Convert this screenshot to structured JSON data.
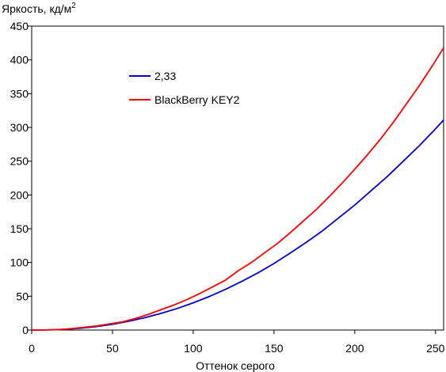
{
  "chart_data": {
    "type": "line",
    "ylabel_main": "Яркость, кд/м",
    "ylabel_sup": "2",
    "xlabel": "Оттенок серого",
    "xlim": [
      0,
      255
    ],
    "ylim": [
      0,
      450
    ],
    "xticks": [
      0,
      50,
      100,
      150,
      200,
      250
    ],
    "yticks": [
      0,
      50,
      100,
      150,
      200,
      250,
      300,
      350,
      400,
      450
    ],
    "grid": false,
    "legend_position": "upper-left",
    "series": [
      {
        "name": "2,33",
        "color": "#0000cc",
        "x": [
          0,
          10,
          20,
          30,
          40,
          50,
          60,
          70,
          80,
          90,
          100,
          110,
          120,
          130,
          140,
          150,
          160,
          170,
          180,
          190,
          200,
          210,
          220,
          230,
          240,
          250,
          255
        ],
        "y": [
          0,
          0.2,
          1.0,
          2.7,
          5.2,
          8.6,
          13,
          18.3,
          24.6,
          31.9,
          40.3,
          49.7,
          60.2,
          71.9,
          84.6,
          98.5,
          114,
          130,
          147,
          166,
          185,
          206,
          227,
          250,
          273,
          298,
          311
        ]
      },
      {
        "name": "BlackBerry KEY2",
        "color": "#ff0000",
        "x": [
          0,
          16,
          24,
          32,
          40,
          48,
          56,
          64,
          72,
          80,
          88,
          96,
          104,
          112,
          120,
          128,
          136,
          144,
          152,
          160,
          168,
          176,
          184,
          192,
          200,
          208,
          216,
          224,
          232,
          240,
          248,
          255
        ],
        "y": [
          0,
          0.5,
          2,
          4,
          6,
          9,
          12,
          17,
          23,
          30,
          37,
          45,
          54,
          64,
          74,
          88,
          100,
          114,
          128,
          144,
          161,
          178,
          197,
          217,
          238,
          260,
          283,
          308,
          335,
          362,
          391,
          418
        ]
      }
    ]
  }
}
